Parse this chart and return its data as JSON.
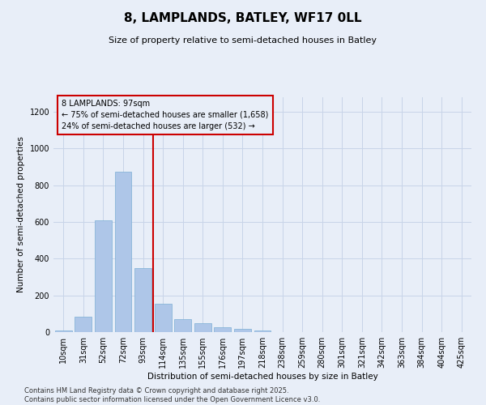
{
  "title": "8, LAMPLANDS, BATLEY, WF17 0LL",
  "subtitle": "Size of property relative to semi-detached houses in Batley",
  "xlabel": "Distribution of semi-detached houses by size in Batley",
  "ylabel": "Number of semi-detached properties",
  "footer_line1": "Contains HM Land Registry data © Crown copyright and database right 2025.",
  "footer_line2": "Contains public sector information licensed under the Open Government Licence v3.0.",
  "categories": [
    "10sqm",
    "31sqm",
    "52sqm",
    "72sqm",
    "93sqm",
    "114sqm",
    "135sqm",
    "155sqm",
    "176sqm",
    "197sqm",
    "218sqm",
    "238sqm",
    "259sqm",
    "280sqm",
    "301sqm",
    "321sqm",
    "342sqm",
    "363sqm",
    "384sqm",
    "404sqm",
    "425sqm"
  ],
  "values": [
    8,
    83,
    607,
    875,
    350,
    155,
    70,
    50,
    25,
    18,
    10,
    0,
    0,
    0,
    0,
    0,
    0,
    0,
    0,
    0,
    0
  ],
  "bar_color": "#aec6e8",
  "bar_edge_color": "#7bafd4",
  "grid_color": "#c8d4e8",
  "background_color": "#e8eef8",
  "vline_x_index": 4,
  "vline_color": "#cc0000",
  "annotation_line1": "8 LAMPLANDS: 97sqm",
  "annotation_line2": "← 75% of semi-detached houses are smaller (1,658)",
  "annotation_line3": "24% of semi-detached houses are larger (532) →",
  "annotation_box_color": "#cc0000",
  "ylim": [
    0,
    1280
  ],
  "yticks": [
    0,
    200,
    400,
    600,
    800,
    1000,
    1200
  ],
  "title_fontsize": 11,
  "subtitle_fontsize": 8,
  "axis_label_fontsize": 7.5,
  "tick_fontsize": 7,
  "footer_fontsize": 6
}
